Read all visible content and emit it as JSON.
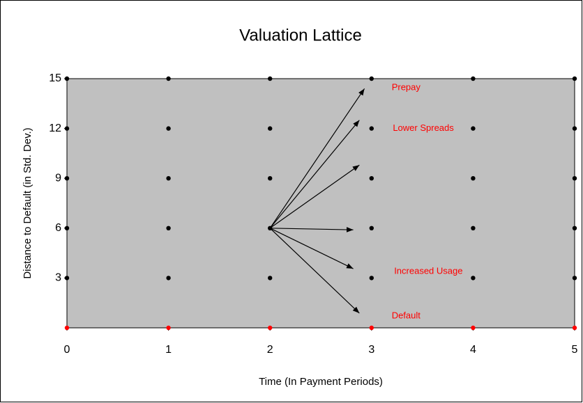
{
  "chart_data": {
    "type": "scatter",
    "title": "Valuation Lattice",
    "x_label": "Time (In Payment Periods)",
    "y_label": "Distance to Default (in Std. Dev.)",
    "xlim": [
      0,
      5
    ],
    "ylim": [
      0,
      15
    ],
    "xticks": [
      0,
      1,
      2,
      3,
      4,
      5
    ],
    "yticks": [
      3,
      6,
      9,
      12,
      15
    ],
    "plot_color": "#c0c0c0",
    "series": [
      {
        "color": "#000000",
        "x": [
          0,
          1,
          2,
          3,
          4,
          5,
          0,
          1,
          2,
          3,
          4,
          5,
          0,
          1,
          2,
          3,
          4,
          5,
          0,
          1,
          2,
          3,
          4,
          5,
          0,
          1,
          2,
          3,
          4,
          5
        ],
        "values": [
          15,
          15,
          15,
          15,
          15,
          15,
          12,
          12,
          12,
          12,
          12,
          12,
          9,
          9,
          9,
          9,
          9,
          9,
          6,
          6,
          6,
          6,
          6,
          6,
          3,
          3,
          3,
          3,
          3,
          3
        ]
      },
      {
        "color": "#ff0000",
        "x": [
          0,
          1,
          2,
          3,
          4,
          5
        ],
        "values": [
          0,
          0,
          0,
          0,
          0,
          0
        ]
      }
    ],
    "arrows": {
      "from": [
        2,
        6
      ],
      "color": "#000000",
      "to": [
        [
          2.93,
          14.4
        ],
        [
          2.88,
          12.5
        ],
        [
          2.88,
          9.8
        ],
        [
          2.82,
          5.9
        ],
        [
          2.82,
          3.56
        ],
        [
          2.88,
          0.88
        ]
      ]
    },
    "annotations": [
      {
        "text": "Prepay",
        "x": 3.34,
        "y": 14.45
      },
      {
        "text": "Lower Spreads",
        "x": 3.51,
        "y": 12.0
      },
      {
        "text": "Increased Usage",
        "x": 3.56,
        "y": 3.4
      },
      {
        "text": "Default",
        "x": 3.34,
        "y": 0.7
      }
    ]
  }
}
